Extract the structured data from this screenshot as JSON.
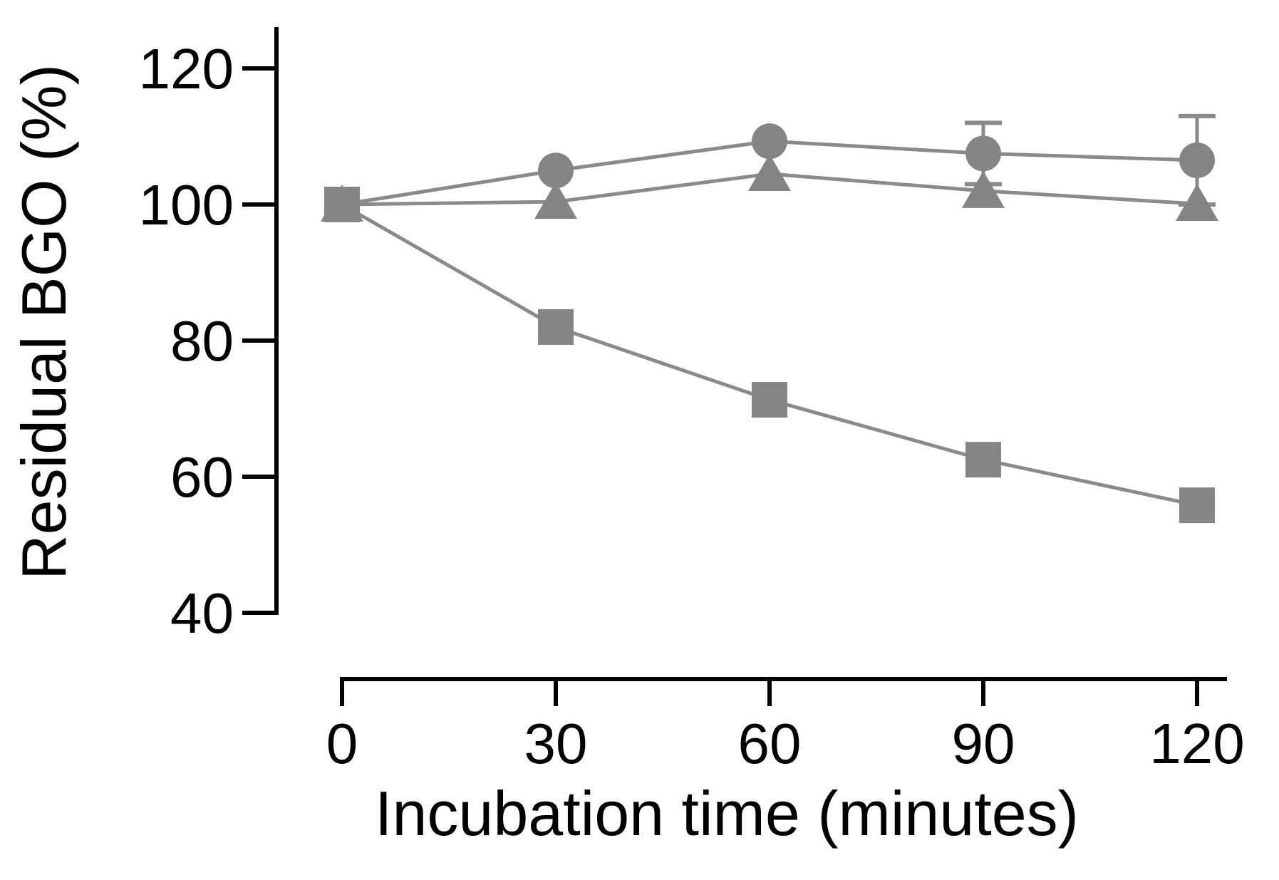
{
  "figure": {
    "background_color": "#ffffff",
    "axis_color": "#000000",
    "text_color": "#000000",
    "marker_color": "#848484",
    "line_color": "#8a8a8a"
  },
  "chart_data": {
    "type": "line",
    "title": "",
    "xlabel": "Incubation time (minutes)",
    "ylabel": "Residual BGO (%)",
    "x": [
      0,
      30,
      60,
      90,
      120
    ],
    "x_tick_labels": [
      "0",
      "30",
      "60",
      "90",
      "120"
    ],
    "y_tick_labels": [
      "120",
      "100",
      "80",
      "60",
      "40"
    ],
    "y_ticks": [
      120,
      100,
      80,
      60,
      40
    ],
    "xlim": [
      0,
      124
    ],
    "ylim": [
      40,
      126
    ],
    "grid": false,
    "legend": "none",
    "series": [
      {
        "name": "circle-series",
        "marker": "circle",
        "values": [
          100,
          105,
          109.3,
          107.5,
          106.5
        ],
        "errors": [
          0,
          0,
          0,
          4.5,
          6.5
        ]
      },
      {
        "name": "triangle-series",
        "marker": "triangle",
        "values": [
          100,
          100.4,
          104.5,
          102,
          100.1
        ],
        "errors": [
          0,
          0,
          0,
          0,
          0
        ]
      },
      {
        "name": "square-series",
        "marker": "square",
        "values": [
          100,
          82,
          71.3,
          62.5,
          55.8
        ],
        "errors": [
          0,
          0,
          0,
          0,
          0
        ]
      }
    ]
  }
}
